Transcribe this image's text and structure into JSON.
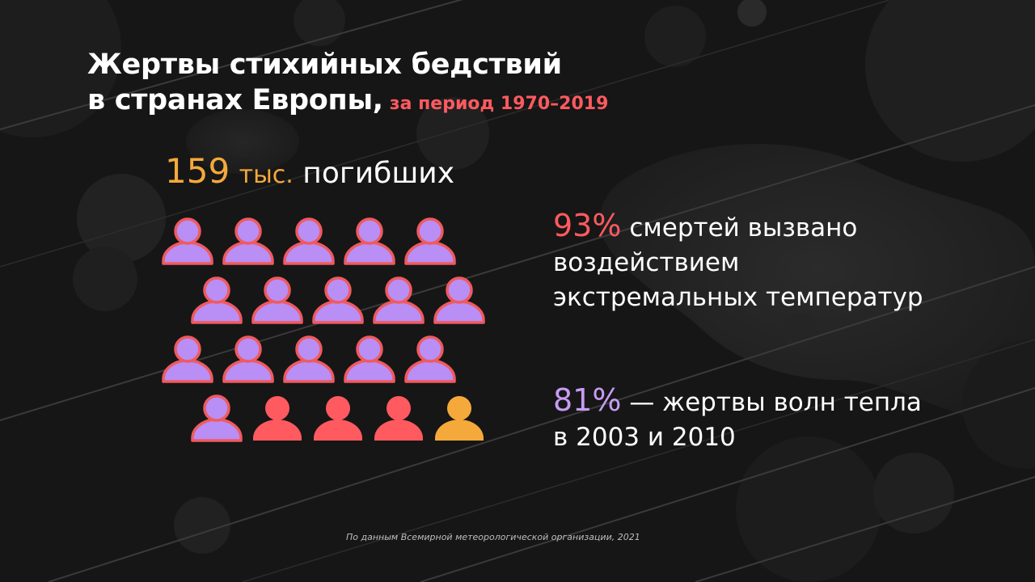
{
  "title": {
    "line1": "Жертвы стихийных бедствий",
    "line2": "в странах Европы,",
    "period": "за период 1970–2019"
  },
  "deaths": {
    "value": "159",
    "unit": "тыс.",
    "label": "погибших"
  },
  "people_icons": {
    "rows": [
      [
        "purple",
        "purple",
        "purple",
        "purple",
        "purple"
      ],
      [
        "purple",
        "purple",
        "purple",
        "purple",
        "purple"
      ],
      [
        "purple",
        "purple",
        "purple",
        "purple",
        "purple"
      ],
      [
        "purple",
        "red",
        "red",
        "red",
        "orange"
      ]
    ]
  },
  "stat_temperature": {
    "percent": "93%",
    "text": "смертей вызвано воздействием экстремальных температур"
  },
  "stat_heatwaves": {
    "percent": "81%",
    "text": "— жертвы волн тепла в 2003 и 2010"
  },
  "source": "По данным Всемирной метеорологической организации, 2021",
  "colors": {
    "background": "#161616",
    "purple": "#b98ef5",
    "red": "#ff5a5f",
    "orange": "#f5a93b",
    "outline": "#f05a5e"
  }
}
